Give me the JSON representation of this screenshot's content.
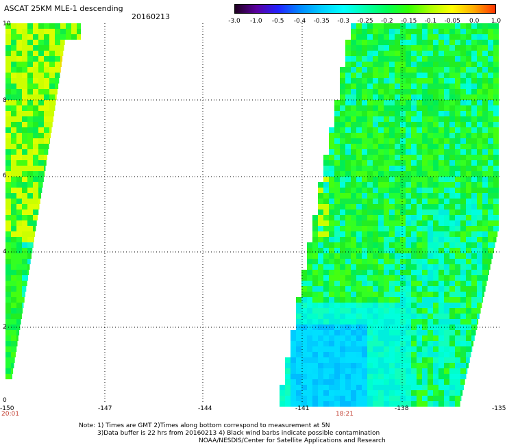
{
  "header": {
    "title": "ASCAT 25KM MLE-1 descending",
    "date": "20160213"
  },
  "colorbar": {
    "tick_labels": [
      "-3.0",
      "-1.0",
      "-0.5",
      "-0.4",
      "-0.35",
      "-0.3",
      "-0.25",
      "-0.2",
      "-0.15",
      "-0.1",
      "-0.05",
      "0.0",
      "1.0"
    ],
    "colors": [
      "#200020",
      "#5a00a0",
      "#2222ff",
      "#0088ff",
      "#00ccff",
      "#00ffff",
      "#00ffaa",
      "#00ff55",
      "#33ff00",
      "#aaff00",
      "#ffff00",
      "#ffaa00",
      "#ff3300"
    ]
  },
  "axes": {
    "y_labels": [
      "10",
      "8",
      "6",
      "4",
      "2",
      "0"
    ],
    "x_labels": [
      "-150",
      "-147",
      "-144",
      "-141",
      "-138",
      "-135"
    ],
    "time_labels": [
      "20:01",
      "18:21"
    ]
  },
  "notes": {
    "line1": "Note: 1) Times are GMT 2)Times along bottom correspond to measurement at 5N",
    "line2": "3)Data buffer is 22 hrs from 20160213 4) Black wind barbs indicate possible contamination",
    "line3": "NOAA/NESDIS/Center for Satellite Applications and Research"
  },
  "palette": {
    "swath_green": "#22ee22",
    "swath_cyan": "#00ffcc",
    "swath_blue": "#00ccff",
    "swath_yellow": "#ccff00",
    "swath_orange": "#ffcc00",
    "time_label_color": "#c0392b"
  }
}
